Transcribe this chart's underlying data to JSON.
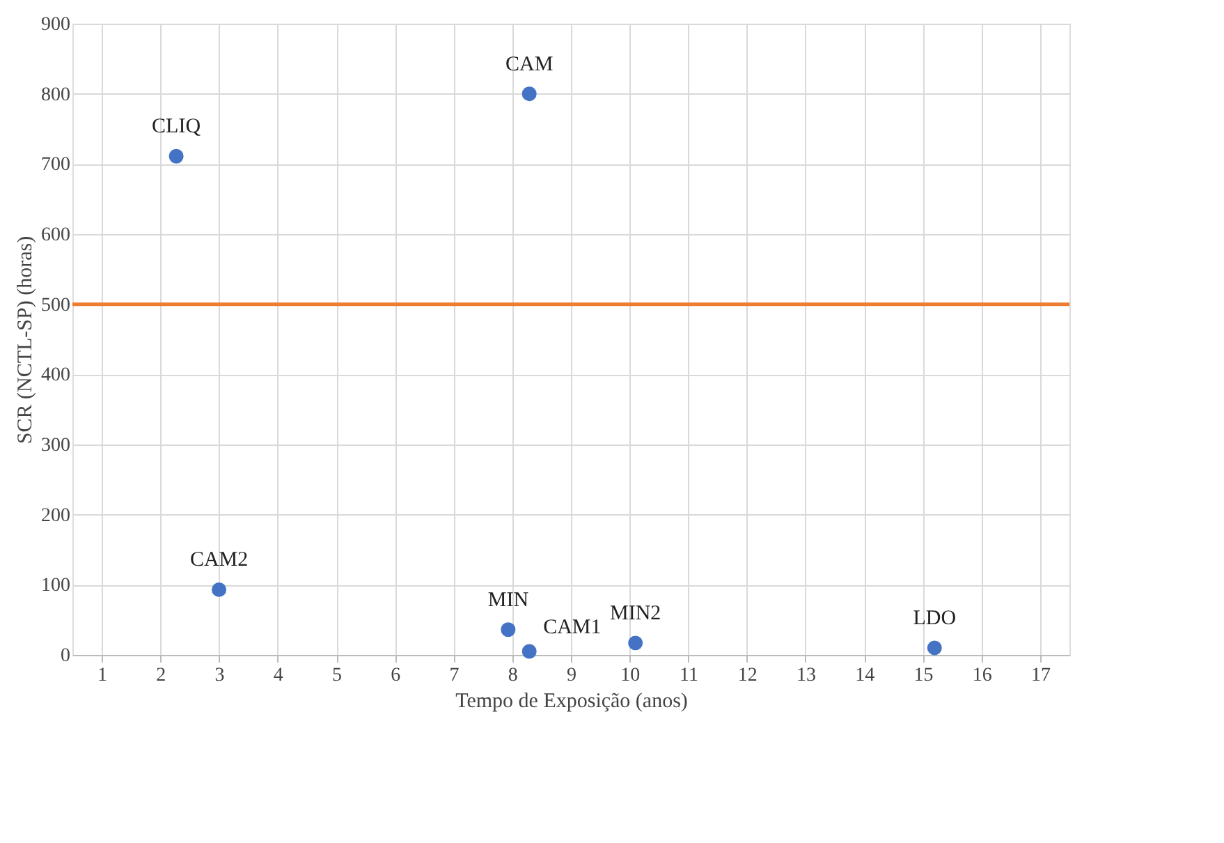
{
  "chart_data": {
    "type": "scatter",
    "xlabel": "Tempo de Exposição (anos)",
    "ylabel": "SCR (NCTL-SP) (horas)",
    "series": [
      {
        "color": "#4472c4",
        "x": [
          2.27,
          8.29,
          3.0,
          7.93,
          8.29,
          10.1,
          15.2
        ],
        "values": [
          711,
          800,
          93,
          36,
          5,
          17,
          10
        ]
      }
    ],
    "annotations": [
      {
        "text": "CLIQ",
        "x": 2.27,
        "y": 711
      },
      {
        "text": "CAM",
        "x": 8.29,
        "y": 800
      },
      {
        "text": "CAM2",
        "x": 3.0,
        "y": 93
      },
      {
        "text": "MIN",
        "x": 7.93,
        "y": 36
      },
      {
        "text": "CAM1",
        "x": 8.29,
        "y": 5
      },
      {
        "text": "MIN2",
        "x": 10.1,
        "y": 17
      },
      {
        "text": "LDO",
        "x": 15.2,
        "y": 10
      }
    ],
    "ref_lines": [
      {
        "axis": "y",
        "value": 500,
        "color": "#ed7d31"
      }
    ],
    "xlim": [
      0.5,
      17.5
    ],
    "xticks": [
      1,
      2,
      3,
      4,
      5,
      6,
      7,
      8,
      9,
      10,
      11,
      12,
      13,
      14,
      15,
      16,
      17
    ],
    "ylim": [
      0,
      900
    ],
    "yticks": [
      0,
      100,
      200,
      300,
      400,
      500,
      600,
      700,
      800,
      900
    ],
    "grid": true,
    "marker": "circle"
  }
}
